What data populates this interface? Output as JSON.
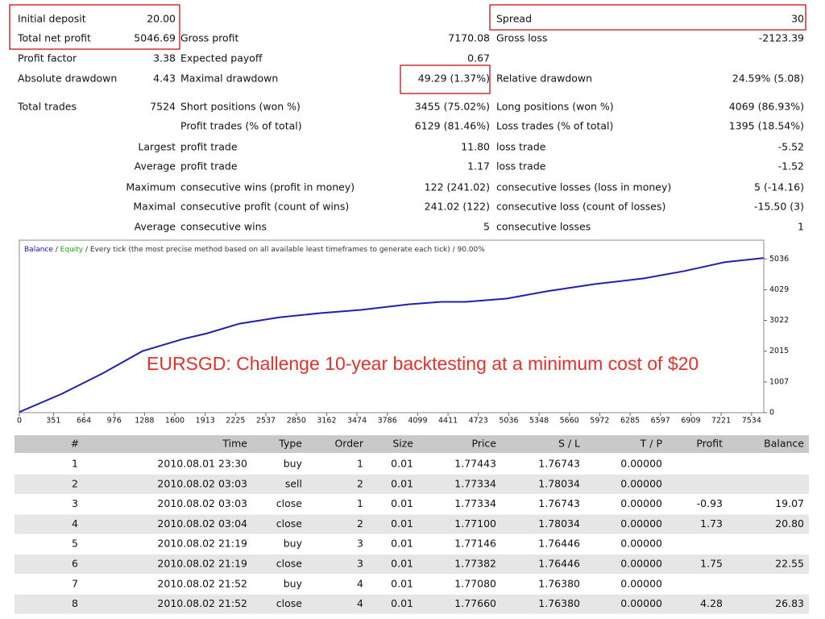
{
  "report": {
    "rows": [
      [
        "Initial deposit",
        "20.00",
        null,
        null,
        "Spread",
        "30"
      ],
      [
        "Total net profit",
        "5046.69",
        "Gross profit",
        "7170.08",
        "Gross loss",
        "-2123.39"
      ],
      [
        "Profit factor",
        "3.38",
        "Expected payoff",
        "0.67",
        null,
        null
      ],
      [
        "Absolute drawdown",
        "4.43",
        "Maximal drawdown",
        "49.29 (1.37%)",
        "Relative drawdown",
        "24.59% (5.08)"
      ],
      [
        "Total trades",
        "7524",
        "Short positions (won %)",
        "3455 (75.02%)",
        "Long positions (won %)",
        "4069 (86.93%)"
      ],
      [
        null,
        null,
        "Profit trades (% of total)",
        "6129 (81.46%)",
        "Loss trades (% of total)",
        "1395 (18.54%)"
      ],
      [
        "Largest",
        null,
        "profit trade",
        "11.80",
        "loss trade",
        "-5.52"
      ],
      [
        "Average",
        null,
        "profit trade",
        "1.17",
        "loss trade",
        "-1.52"
      ],
      [
        "Maximum",
        null,
        "consecutive wins (profit in money)",
        "122 (241.02)",
        "consecutive losses (loss in money)",
        "5 (-14.16)"
      ],
      [
        "Maximal",
        null,
        "consecutive profit (count of wins)",
        "241.02 (122)",
        "consecutive loss (count of losses)",
        "-15.50 (3)"
      ],
      [
        "Average",
        null,
        "consecutive wins",
        "5",
        "consecutive losses",
        "1"
      ]
    ]
  },
  "chart_data": {
    "type": "line",
    "title_parts": [
      {
        "text": "Balance",
        "color": "#1010c0"
      },
      {
        "text": " / ",
        "color": "#333333"
      },
      {
        "text": "Equity",
        "color": "#10b010"
      },
      {
        "text": " / Every tick (the most precise method based on all available least timeframes to generate each tick) / 90.00%",
        "color": "#333333"
      }
    ],
    "annotation": "EURSGD: Challenge 10-year backtesting at a minimum cost of $20",
    "x": [
      0,
      433,
      849,
      1265,
      1682,
      1931,
      2264,
      2681,
      3097,
      3513,
      4013,
      4346,
      4595,
      5012,
      5428,
      5927,
      6427,
      6843,
      7259,
      7659
    ],
    "series": [
      {
        "name": "Balance",
        "color": "#2020b0",
        "values": [
          20,
          610,
          1272,
          2014,
          2411,
          2597,
          2915,
          3127,
          3260,
          3366,
          3551,
          3631,
          3631,
          3737,
          3975,
          4214,
          4399,
          4638,
          4929,
          5066
        ]
      }
    ],
    "xlim": [
      0,
      7660
    ],
    "ylim": [
      0,
      5650
    ],
    "xticks": [
      0,
      351,
      664,
      976,
      1288,
      1600,
      1913,
      2225,
      2537,
      2850,
      3162,
      3474,
      3786,
      4099,
      4411,
      4723,
      5036,
      5348,
      5660,
      5972,
      6285,
      6597,
      6909,
      7221,
      7534
    ],
    "yticks": [
      0,
      1007,
      2015,
      3022,
      4029,
      5036
    ]
  },
  "table": {
    "header": [
      "#",
      "Time",
      "Type",
      "Order",
      "Size",
      "Price",
      "S / L",
      "T / P",
      "Profit",
      "Balance"
    ],
    "rows": [
      [
        "1",
        "2010.08.01 23:30",
        "buy",
        "1",
        "0.01",
        "1.77443",
        "1.76743",
        "0.00000",
        null,
        null
      ],
      [
        "2",
        "2010.08.02 03:03",
        "sell",
        "2",
        "0.01",
        "1.77334",
        "1.78034",
        "0.00000",
        null,
        null
      ],
      [
        "3",
        "2010.08.02 03:03",
        "close",
        "1",
        "0.01",
        "1.77334",
        "1.76743",
        "0.00000",
        "-0.93",
        "19.07"
      ],
      [
        "4",
        "2010.08.02 03:04",
        "close",
        "2",
        "0.01",
        "1.77100",
        "1.78034",
        "0.00000",
        "1.73",
        "20.80"
      ],
      [
        "5",
        "2010.08.02 21:19",
        "buy",
        "3",
        "0.01",
        "1.77146",
        "1.76446",
        "0.00000",
        null,
        null
      ],
      [
        "6",
        "2010.08.02 21:19",
        "close",
        "3",
        "0.01",
        "1.77382",
        "1.76446",
        "0.00000",
        "1.75",
        "22.55"
      ],
      [
        "7",
        "2010.08.02 21:52",
        "buy",
        "4",
        "0.01",
        "1.77080",
        "1.76380",
        "0.00000",
        null,
        null
      ],
      [
        "8",
        "2010.08.02 21:52",
        "close",
        "4",
        "0.01",
        "1.77660",
        "1.76380",
        "0.00000",
        "4.28",
        "26.83"
      ]
    ]
  }
}
